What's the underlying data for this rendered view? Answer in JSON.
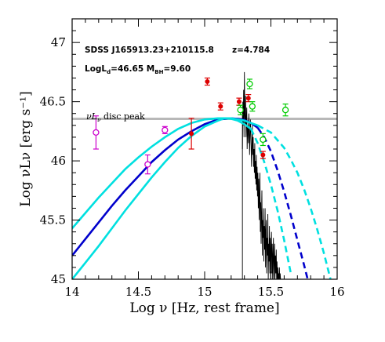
{
  "chart_data": {
    "type": "line",
    "xlabel": "Log ν [Hz, rest frame]",
    "ylabel": "Log νLν [erg s⁻¹]",
    "xlim": [
      14,
      16
    ],
    "ylim": [
      45,
      47.2
    ],
    "xticks": [
      14,
      14.5,
      15,
      15.5,
      16
    ],
    "yticks": [
      45,
      45.5,
      46,
      46.5,
      47
    ],
    "xticklabels": [
      "14",
      "14.5",
      "15",
      "15.5",
      "16"
    ],
    "yticklabels": [
      "45",
      "45.5",
      "46",
      "46.5",
      "47"
    ],
    "annotations": {
      "object": "SDSS J165913.23+210115.8",
      "redshift": "z=4.784",
      "params": "LogL",
      "params_sub": "d",
      "params_mid": "=46.65  M",
      "params_sub2": "BH",
      "params_end": "=9.60",
      "peak_label": "νL",
      "peak_label_sub": "ν",
      "peak_label_end": " disc peak"
    },
    "peak_line": {
      "y": 46.355,
      "color": "#b8b8b8"
    },
    "model_curves": [
      {
        "style": "solid",
        "color": "#0000cc",
        "x": [
          14.0,
          14.1,
          14.2,
          14.3,
          14.4,
          14.5,
          14.6,
          14.7,
          14.8,
          14.9,
          15.0,
          15.1,
          15.2,
          15.25,
          15.3,
          15.35,
          15.4
        ],
        "y": [
          45.2,
          45.34,
          45.48,
          45.62,
          45.75,
          45.87,
          45.99,
          46.09,
          46.18,
          46.25,
          46.31,
          46.35,
          46.36,
          46.355,
          46.345,
          46.32,
          46.28
        ]
      },
      {
        "style": "dashed",
        "color": "#0000cc",
        "x": [
          15.4,
          15.45,
          15.5,
          15.55,
          15.6,
          15.65,
          15.7,
          15.75,
          15.8
        ],
        "y": [
          46.28,
          46.2,
          46.08,
          45.92,
          45.74,
          45.54,
          45.33,
          45.12,
          44.9
        ]
      },
      {
        "style": "solid",
        "color": "#00e0e0",
        "x": [
          14.0,
          14.1,
          14.2,
          14.3,
          14.4,
          14.5,
          14.6,
          14.7,
          14.8,
          14.9,
          15.0,
          15.1,
          15.2,
          15.25,
          15.3,
          15.35,
          15.4
        ],
        "y": [
          45.43,
          45.56,
          45.69,
          45.81,
          45.93,
          46.03,
          46.12,
          46.2,
          46.27,
          46.32,
          46.35,
          46.36,
          46.36,
          46.35,
          46.34,
          46.32,
          46.3
        ]
      },
      {
        "style": "dashed",
        "color": "#00e0e0",
        "x": [
          15.4,
          15.5,
          15.6,
          15.65,
          15.7,
          15.75,
          15.8,
          15.85,
          15.9,
          15.95
        ],
        "y": [
          46.3,
          46.24,
          46.11,
          46.01,
          45.9,
          45.76,
          45.6,
          45.42,
          45.22,
          45.0
        ]
      },
      {
        "style": "solid",
        "color": "#00e0e0",
        "x": [
          14.0,
          14.1,
          14.2,
          14.3,
          14.4,
          14.5,
          14.6,
          14.7,
          14.8,
          14.9,
          15.0,
          15.1,
          15.15,
          15.2,
          15.25,
          15.3,
          15.35
        ],
        "y": [
          45.0,
          45.14,
          45.28,
          45.43,
          45.58,
          45.72,
          45.86,
          45.99,
          46.11,
          46.21,
          46.29,
          46.34,
          46.36,
          46.355,
          46.34,
          46.31,
          46.27
        ]
      },
      {
        "style": "dashed",
        "color": "#00e0e0",
        "x": [
          15.35,
          15.4,
          15.45,
          15.5,
          15.55,
          15.6,
          15.65
        ],
        "y": [
          46.27,
          46.15,
          45.99,
          45.8,
          45.58,
          45.33,
          45.05
        ]
      }
    ],
    "series_points": [
      {
        "color": "#cc00cc",
        "marker": "open-circle",
        "x": [
          14.18,
          14.57,
          14.7
        ],
        "y": [
          46.24,
          45.97,
          46.26
        ],
        "yerr": [
          0.14,
          0.08,
          0.03
        ]
      },
      {
        "color": "#dd0000",
        "marker": "filled-circle",
        "x": [
          14.9,
          15.02,
          15.12,
          15.26,
          15.33,
          15.44
        ],
        "y": [
          46.23,
          46.67,
          46.46,
          46.5,
          46.53,
          46.05
        ],
        "yerr": [
          0.13,
          0.03,
          0.03,
          0.03,
          0.03,
          0.03
        ]
      },
      {
        "color": "#00cc00",
        "marker": "open-circle",
        "x": [
          15.27,
          15.34,
          15.36,
          15.44,
          15.61
        ],
        "y": [
          46.43,
          46.65,
          46.46,
          46.18,
          46.43
        ],
        "yerr": [
          0.04,
          0.04,
          0.04,
          0.05,
          0.05
        ]
      }
    ],
    "spectrum": {
      "color": "#000000",
      "x": [
        15.285,
        15.288,
        15.291,
        15.294,
        15.297,
        15.3,
        15.303,
        15.306,
        15.309,
        15.312,
        15.315,
        15.318,
        15.321,
        15.324,
        15.327,
        15.33,
        15.333,
        15.336,
        15.339,
        15.342,
        15.345,
        15.348,
        15.351,
        15.354,
        15.357,
        15.36,
        15.363,
        15.366,
        15.369,
        15.372,
        15.375,
        15.378,
        15.381,
        15.384,
        15.387,
        15.39,
        15.393,
        15.396,
        15.399,
        15.402,
        15.405,
        15.408,
        15.411,
        15.414,
        15.417,
        15.42,
        15.423,
        15.426,
        15.429,
        15.432,
        15.435,
        15.438,
        15.441,
        15.444,
        15.447,
        15.45,
        15.453,
        15.456,
        15.459,
        15.462,
        15.465,
        15.468,
        15.471,
        15.474,
        15.477,
        15.48,
        15.483,
        15.486,
        15.489,
        15.492,
        15.495,
        15.498,
        15.501,
        15.504,
        15.507,
        15.51,
        15.513,
        15.516,
        15.519,
        15.522,
        15.525,
        15.528,
        15.531,
        15.534,
        15.537,
        15.54,
        15.543,
        15.546,
        15.549,
        15.552,
        15.555,
        15.558,
        15.561,
        15.564,
        15.567,
        15.57,
        15.573,
        15.576,
        15.579,
        15.582
      ],
      "y": [
        46.1,
        46.5,
        46.3,
        46.6,
        46.2,
        46.75,
        46.4,
        46.3,
        46.55,
        46.2,
        46.35,
        46.45,
        46.1,
        46.3,
        46.25,
        46.15,
        46.4,
        46.3,
        46.05,
        46.2,
        46.35,
        46.25,
        46.1,
        45.95,
        46.15,
        46.3,
        46.05,
        46.2,
        45.95,
        46.1,
        45.9,
        46.15,
        45.85,
        46.0,
        45.8,
        46.05,
        45.75,
        45.95,
        45.7,
        45.9,
        45.6,
        45.85,
        45.5,
        45.7,
        45.9,
        45.4,
        45.65,
        45.3,
        45.55,
        45.75,
        45.2,
        45.5,
        45.35,
        45.6,
        45.15,
        45.45,
        45.25,
        45.6,
        45.1,
        45.4,
        45.5,
        45.05,
        45.35,
        45.2,
        45.55,
        45.0,
        45.3,
        45.15,
        45.45,
        45.05,
        45.35,
        45.0,
        45.25,
        45.4,
        45.05,
        45.3,
        45.0,
        45.2,
        45.35,
        45.0,
        45.15,
        45.3,
        45.0,
        45.2,
        45.05,
        45.25,
        45.0,
        45.15,
        45.0,
        45.1,
        45.0,
        45.05,
        45.0,
        45.1,
        45.0,
        45.05,
        45.0,
        45.0,
        45.0,
        45.0
      ]
    }
  }
}
